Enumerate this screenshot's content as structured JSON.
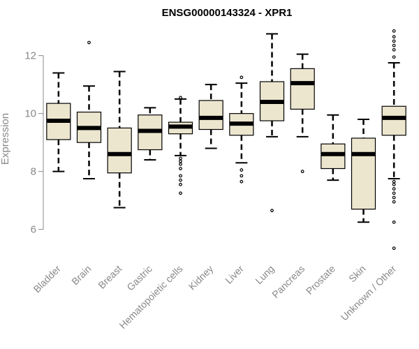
{
  "chart_data": {
    "type": "boxplot",
    "title": "ENSG00000143324 - XPR1",
    "xlabel": "",
    "ylabel": "Expression",
    "ylim": [
      5.1,
      13.1
    ],
    "yticks": [
      6,
      8,
      10,
      12
    ],
    "box_fill": "#ede6cf",
    "categories": [
      "Bladder",
      "Brain",
      "Breast",
      "Gastric",
      "Hematopoietic cells",
      "Kidney",
      "Liver",
      "Lung",
      "Pancreas",
      "Prostate",
      "Skin",
      "Unknown / Other"
    ],
    "series": [
      {
        "name": "Bladder",
        "whisker_low": 8.0,
        "q1": 9.1,
        "median": 9.75,
        "q3": 10.35,
        "whisker_high": 11.4,
        "outliers": []
      },
      {
        "name": "Brain",
        "whisker_low": 7.75,
        "q1": 9.0,
        "median": 9.5,
        "q3": 10.05,
        "whisker_high": 10.95,
        "outliers": [
          12.45
        ]
      },
      {
        "name": "Breast",
        "whisker_low": 6.75,
        "q1": 7.95,
        "median": 8.6,
        "q3": 9.5,
        "whisker_high": 11.45,
        "outliers": []
      },
      {
        "name": "Gastric",
        "whisker_low": 8.4,
        "q1": 8.75,
        "median": 9.4,
        "q3": 9.95,
        "whisker_high": 10.2,
        "outliers": []
      },
      {
        "name": "Hematopoietic cells",
        "whisker_low": 8.55,
        "q1": 9.3,
        "median": 9.55,
        "q3": 9.7,
        "whisker_high": 10.5,
        "outliers": [
          7.25,
          7.55,
          7.7,
          7.85,
          8.1,
          8.25,
          8.35,
          8.45,
          10.55
        ]
      },
      {
        "name": "Kidney",
        "whisker_low": 8.8,
        "q1": 9.45,
        "median": 9.85,
        "q3": 10.45,
        "whisker_high": 11.0,
        "outliers": []
      },
      {
        "name": "Liver",
        "whisker_low": 8.3,
        "q1": 9.25,
        "median": 9.65,
        "q3": 10.0,
        "whisker_high": 11.05,
        "outliers": [
          7.65,
          7.85,
          8.05,
          11.25
        ]
      },
      {
        "name": "Lung",
        "whisker_low": 9.2,
        "q1": 9.75,
        "median": 10.4,
        "q3": 11.1,
        "whisker_high": 12.75,
        "outliers": [
          6.65
        ]
      },
      {
        "name": "Pancreas",
        "whisker_low": 9.2,
        "q1": 10.15,
        "median": 11.05,
        "q3": 11.55,
        "whisker_high": 12.05,
        "outliers": [
          8.0
        ]
      },
      {
        "name": "Prostate",
        "whisker_low": 7.7,
        "q1": 8.1,
        "median": 8.6,
        "q3": 8.95,
        "whisker_high": 9.95,
        "outliers": []
      },
      {
        "name": "Skin",
        "whisker_low": 6.25,
        "q1": 6.7,
        "median": 8.6,
        "q3": 9.15,
        "whisker_high": 9.8,
        "outliers": []
      },
      {
        "name": "Unknown / Other",
        "whisker_low": 7.75,
        "q1": 9.25,
        "median": 9.85,
        "q3": 10.25,
        "whisker_high": 11.75,
        "outliers": [
          5.35,
          6.25,
          6.95,
          7.1,
          7.25,
          7.4,
          7.55,
          7.65,
          11.95,
          12.2,
          12.35,
          12.5,
          12.65,
          12.85
        ]
      }
    ]
  }
}
